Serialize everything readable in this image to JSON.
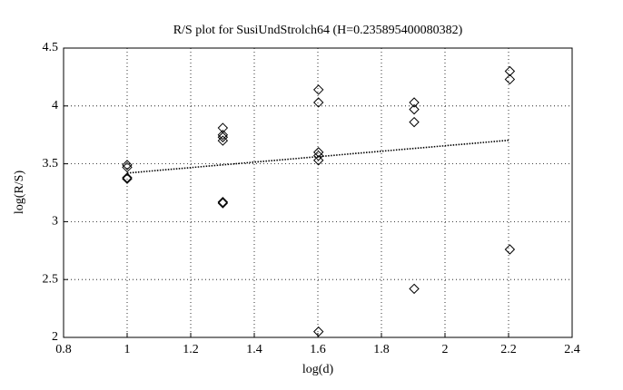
{
  "chart_data": {
    "type": "scatter",
    "title": "R/S plot for SusiUndStrolch64 (H=0.235895400080382)",
    "x_label": "log(d)",
    "y_label": "log(R/S)",
    "xlim": [
      0.8,
      2.4
    ],
    "xticks": [
      0.8,
      1,
      1.2,
      1.4,
      1.6,
      1.8,
      2,
      2.2,
      2.4
    ],
    "ylim": [
      2,
      4.5
    ],
    "yticks": [
      2,
      2.5,
      3,
      3.5,
      4,
      4.5
    ],
    "grid": true,
    "series": [
      {
        "type": "scatter",
        "marker": "diamond",
        "color": "#000000",
        "x": [
          1,
          1,
          1,
          1,
          1.301,
          1.301,
          1.301,
          1.301,
          1.301,
          1.301,
          1.602,
          1.602,
          1.602,
          1.602,
          1.602,
          1.602,
          1.903,
          1.903,
          1.903,
          1.903,
          2.204,
          2.204,
          2.204
        ],
        "values": [
          3.49,
          3.47,
          3.38,
          3.37,
          3.81,
          3.75,
          3.73,
          3.7,
          3.17,
          3.16,
          4.14,
          4.03,
          3.6,
          3.57,
          3.53,
          2.05,
          4.03,
          3.97,
          3.86,
          2.42,
          4.3,
          4.23,
          2.76
        ]
      },
      {
        "type": "line",
        "linestyle": "dotted",
        "color": "#000000",
        "x": [
          1,
          2.204
        ],
        "values": [
          3.42,
          3.704
        ]
      }
    ]
  }
}
